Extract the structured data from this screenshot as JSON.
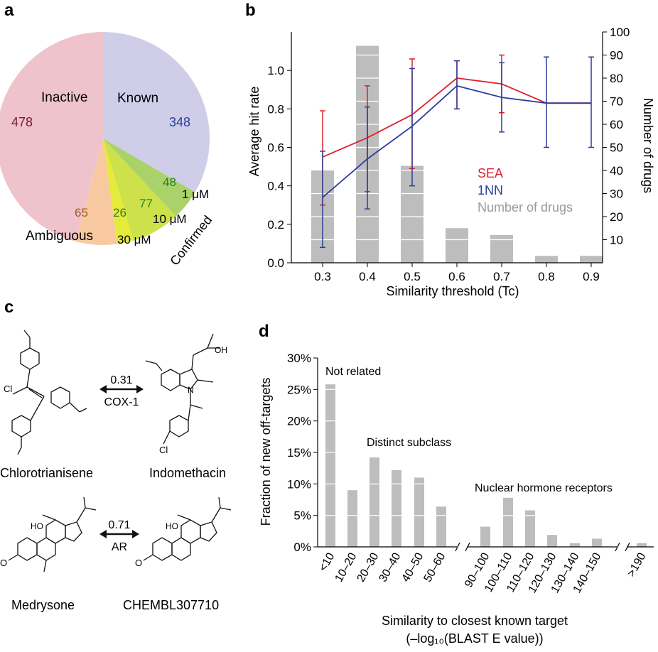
{
  "panel_labels": {
    "a": "a",
    "b": "b",
    "c": "c",
    "d": "d"
  },
  "colors": {
    "inactive": "#efc3cc",
    "known": "#cfcde8",
    "ambiguous": "#f8c9a0",
    "c30": "#e6ea3a",
    "c10": "#cde24a",
    "c1": "#a9d26a",
    "sea": "#e0202f",
    "nn": "#2a3e9a",
    "bar": "#bdbdbd"
  },
  "chart_data": [
    {
      "type": "pie",
      "panel": "a",
      "slices": [
        {
          "label": "Known",
          "value": 348,
          "value_color": "#2a3e9a"
        },
        {
          "label": "1 μM",
          "value": 48,
          "value_color": "#2f7a2f"
        },
        {
          "label": "10 μM",
          "value": 77,
          "value_color": "#2f7a2f"
        },
        {
          "label": "30 μM",
          "value": 26,
          "value_color": "#2f7a2f"
        },
        {
          "label": "Ambiguous",
          "value": 65,
          "value_color": "#a0561a"
        },
        {
          "label": "Inactive",
          "value": 478,
          "value_color": "#7a1a2a"
        }
      ],
      "group_label": "Confirmed"
    },
    {
      "type": "line",
      "panel": "b",
      "xlabel": "Similarity threshold (Tc)",
      "ylabel": "Average hit rate",
      "y2label": "Number of drugs",
      "x": [
        0.3,
        0.4,
        0.5,
        0.6,
        0.7,
        0.8,
        0.9
      ],
      "x_ticks": [
        "0.3",
        "0.4",
        "0.5",
        "0.6",
        "0.7",
        "0.8",
        "0.9"
      ],
      "ylim": [
        0,
        1.2
      ],
      "y_ticks": [
        "0.0",
        "0.2",
        "0.4",
        "0.6",
        "0.8",
        "1.0"
      ],
      "y2lim": [
        0,
        100
      ],
      "y2_ticks": [
        "10",
        "20",
        "30",
        "40",
        "50",
        "60",
        "70",
        "80",
        "90",
        "100"
      ],
      "series": [
        {
          "name": "SEA",
          "values": [
            0.55,
            0.65,
            0.77,
            0.96,
            0.93,
            0.83,
            0.83
          ],
          "err_low": [
            0.3,
            0.37,
            0.49,
            0.8,
            0.78,
            0.83,
            0.83
          ],
          "err_high": [
            0.79,
            0.92,
            1.06,
            1.05,
            1.08,
            0.83,
            0.83
          ]
        },
        {
          "name": "1NN",
          "values": [
            0.34,
            0.54,
            0.71,
            0.92,
            0.86,
            0.83,
            0.83
          ],
          "err_low": [
            0.08,
            0.28,
            0.4,
            0.8,
            0.68,
            0.6,
            0.6
          ],
          "err_high": [
            0.58,
            0.81,
            1.01,
            1.05,
            1.04,
            1.07,
            1.07
          ]
        },
        {
          "name": "Number of drugs",
          "values": [
            40,
            94,
            42,
            15,
            12,
            3,
            3
          ]
        }
      ]
    },
    {
      "type": "bar",
      "panel": "d",
      "xlabel_line1": "Similarity to closest known target",
      "xlabel_line2": "(–log₁₀(BLAST E value))",
      "ylabel": "Fraction of new off-targets",
      "ylim": [
        0,
        30
      ],
      "y_ticks": [
        "0%",
        "5%",
        "10%",
        "15%",
        "20%",
        "25%",
        "30%"
      ],
      "categories": [
        "<10",
        "10–20",
        "20–30",
        "30–40",
        "40–50",
        "50–60",
        "90–100",
        "100–110",
        "110–120",
        "120–130",
        "130–140",
        "140–150",
        ">190"
      ],
      "values": [
        25.8,
        9.0,
        14.2,
        12.2,
        11.0,
        6.4,
        3.2,
        7.8,
        5.8,
        1.9,
        0.6,
        1.3,
        0.6
      ],
      "annotations": [
        "Not related",
        "Distinct subclass",
        "Nuclear hormone receptors"
      ]
    }
  ],
  "panel_c": {
    "pair1": {
      "left": "Chlorotrianisene",
      "right": "Indomethacin",
      "tc": "0.31",
      "target": "COX-1"
    },
    "pair2": {
      "left": "Medrysone",
      "right": "CHEMBL307710",
      "tc": "0.71",
      "target": "AR"
    },
    "atoms": {
      "cl": "Cl",
      "o": "O",
      "oh": "OH",
      "n": "N",
      "ho": "HO"
    }
  }
}
